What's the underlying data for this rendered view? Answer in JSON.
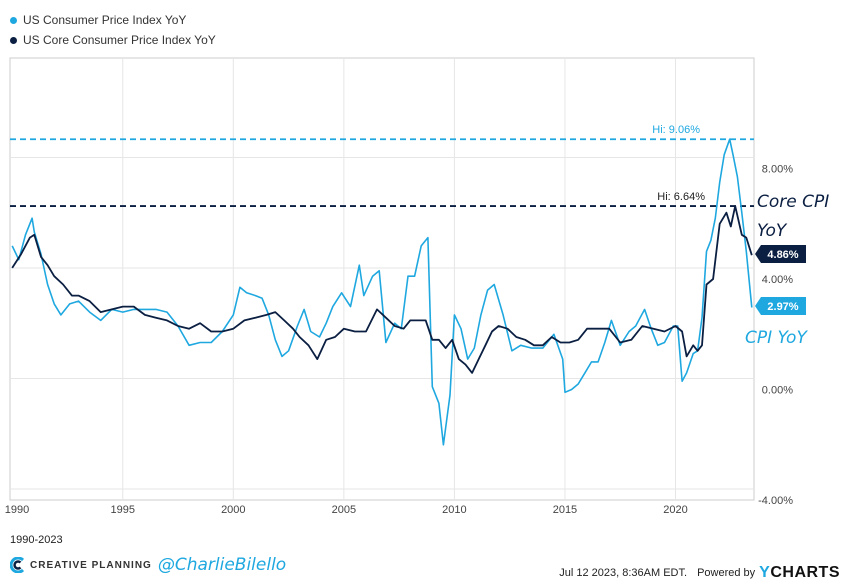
{
  "legend": [
    {
      "name": "US Consumer Price Index YoY",
      "color": "#1fa8e0"
    },
    {
      "name": "US Core Consumer Price Index YoY",
      "color": "#0b1f42"
    }
  ],
  "chart_data": {
    "type": "line",
    "x_ticks": [
      "1990",
      "1995",
      "2000",
      "2005",
      "2010",
      "2015",
      "2020"
    ],
    "y_ticks": [
      "8.00%",
      "4.00%",
      "0.00%",
      "-4.00%"
    ],
    "ylim": [
      -4.0,
      12.0
    ],
    "xlim": [
      1989.9,
      2023.55
    ],
    "grid": true,
    "series": [
      {
        "name": "US Consumer Price Index YoY",
        "color": "#1fa8e0",
        "x": [
          1990.0,
          1990.3,
          1990.6,
          1990.9,
          1991.0,
          1991.3,
          1991.6,
          1991.9,
          1992.2,
          1992.6,
          1993.0,
          1993.5,
          1994.0,
          1994.5,
          1995.0,
          1995.5,
          1996.0,
          1996.5,
          1997.0,
          1997.5,
          1998.0,
          1998.5,
          1999.0,
          1999.5,
          2000.0,
          2000.3,
          2000.6,
          2001.0,
          2001.3,
          2001.6,
          2001.9,
          2002.2,
          2002.5,
          2002.9,
          2003.2,
          2003.5,
          2003.9,
          2004.2,
          2004.5,
          2004.9,
          2005.3,
          2005.7,
          2005.9,
          2006.3,
          2006.6,
          2006.9,
          2007.3,
          2007.6,
          2007.9,
          2008.2,
          2008.5,
          2008.8,
          2009.0,
          2009.3,
          2009.5,
          2009.8,
          2010.0,
          2010.3,
          2010.6,
          2010.9,
          2011.2,
          2011.5,
          2011.8,
          2012.2,
          2012.6,
          2013.0,
          2013.5,
          2014.0,
          2014.5,
          2014.9,
          2015.0,
          2015.3,
          2015.6,
          2015.9,
          2016.2,
          2016.5,
          2016.8,
          2017.1,
          2017.5,
          2017.9,
          2018.2,
          2018.6,
          2018.9,
          2019.2,
          2019.5,
          2019.9,
          2020.1,
          2020.3,
          2020.5,
          2020.8,
          2021.0,
          2021.2,
          2021.4,
          2021.6,
          2021.8,
          2022.0,
          2022.2,
          2022.45,
          2022.6,
          2022.8,
          2023.0,
          2023.2,
          2023.45
        ],
        "y": [
          5.2,
          4.7,
          5.6,
          6.2,
          5.7,
          4.9,
          3.8,
          3.1,
          2.7,
          3.1,
          3.2,
          2.8,
          2.5,
          2.9,
          2.8,
          2.9,
          2.9,
          2.9,
          2.8,
          2.3,
          1.6,
          1.7,
          1.7,
          2.1,
          2.7,
          3.7,
          3.5,
          3.4,
          3.3,
          2.7,
          1.8,
          1.2,
          1.4,
          2.3,
          2.9,
          2.1,
          1.9,
          2.4,
          3.0,
          3.5,
          3.0,
          4.5,
          3.4,
          4.1,
          4.3,
          1.7,
          2.4,
          2.2,
          4.1,
          4.1,
          5.2,
          5.5,
          0.1,
          -0.5,
          -2.0,
          -0.2,
          2.7,
          2.2,
          1.1,
          1.5,
          2.7,
          3.6,
          3.8,
          2.7,
          1.4,
          1.6,
          1.5,
          1.5,
          2.0,
          1.1,
          -0.1,
          0.0,
          0.2,
          0.6,
          1.0,
          1.0,
          1.7,
          2.5,
          1.6,
          2.1,
          2.3,
          2.9,
          2.2,
          1.6,
          1.7,
          2.3,
          2.3,
          0.3,
          0.6,
          1.3,
          1.4,
          2.6,
          5.0,
          5.4,
          6.2,
          7.5,
          8.5,
          9.06,
          8.5,
          7.7,
          6.4,
          5.0,
          2.97
        ]
      },
      {
        "name": "US Core Consumer Price Index YoY",
        "color": "#0b1f42",
        "x": [
          1990.0,
          1990.4,
          1990.8,
          1991.0,
          1991.3,
          1991.6,
          1991.9,
          1992.3,
          1992.7,
          1993.0,
          1993.5,
          1994.0,
          1994.5,
          1995.0,
          1995.5,
          1996.0,
          1996.5,
          1997.0,
          1997.5,
          1998.0,
          1998.5,
          1999.0,
          1999.5,
          2000.0,
          2000.5,
          2001.0,
          2001.5,
          2001.9,
          2002.3,
          2002.7,
          2003.0,
          2003.4,
          2003.8,
          2004.2,
          2004.6,
          2005.0,
          2005.5,
          2006.0,
          2006.5,
          2006.9,
          2007.3,
          2007.7,
          2008.0,
          2008.4,
          2008.7,
          2009.0,
          2009.3,
          2009.6,
          2009.9,
          2010.2,
          2010.5,
          2010.8,
          2011.1,
          2011.4,
          2011.7,
          2012.0,
          2012.4,
          2012.8,
          2013.2,
          2013.6,
          2014.0,
          2014.4,
          2014.8,
          2015.2,
          2015.6,
          2016.0,
          2016.5,
          2017.0,
          2017.5,
          2018.0,
          2018.5,
          2019.0,
          2019.5,
          2020.0,
          2020.3,
          2020.5,
          2020.8,
          2021.0,
          2021.2,
          2021.4,
          2021.7,
          2022.0,
          2022.3,
          2022.5,
          2022.7,
          2023.0,
          2023.2,
          2023.45
        ],
        "y": [
          4.4,
          4.9,
          5.5,
          5.6,
          4.8,
          4.5,
          4.1,
          3.8,
          3.4,
          3.4,
          3.2,
          2.8,
          2.9,
          3.0,
          3.0,
          2.7,
          2.6,
          2.5,
          2.3,
          2.2,
          2.4,
          2.1,
          2.1,
          2.2,
          2.5,
          2.6,
          2.7,
          2.8,
          2.5,
          2.2,
          1.9,
          1.6,
          1.1,
          1.8,
          1.9,
          2.2,
          2.1,
          2.1,
          2.9,
          2.6,
          2.3,
          2.2,
          2.5,
          2.5,
          2.5,
          1.8,
          1.8,
          1.5,
          1.8,
          1.1,
          0.9,
          0.6,
          1.1,
          1.6,
          2.1,
          2.3,
          2.2,
          1.9,
          1.8,
          1.6,
          1.6,
          1.9,
          1.7,
          1.7,
          1.8,
          2.2,
          2.2,
          2.2,
          1.7,
          1.8,
          2.3,
          2.2,
          2.1,
          2.3,
          2.1,
          1.2,
          1.6,
          1.4,
          1.6,
          3.8,
          4.0,
          6.0,
          6.4,
          5.9,
          6.64,
          5.6,
          5.5,
          4.86
        ]
      }
    ],
    "reference_lines": [
      {
        "label": "Hi: 9.06%",
        "value": 9.06,
        "color": "#1fa8e0"
      },
      {
        "label": "Hi: 6.64%",
        "value": 6.64,
        "color": "#0b1f42"
      }
    ],
    "last_values": [
      {
        "label": "4.86%",
        "value": 4.86,
        "color": "#0b1f42"
      },
      {
        "label": "2.97%",
        "value": 2.97,
        "color": "#1fa8e0"
      }
    ],
    "annotations": [
      {
        "text": "Core CPI",
        "color": "#0b1f42"
      },
      {
        "text": "YoY",
        "color": "#0b1f42"
      },
      {
        "text": "CPI YoY",
        "color": "#1fa8e0"
      }
    ]
  },
  "footer": {
    "range": "1990-2023",
    "brand": "CREATIVE PLANNING",
    "handle": "@CharlieBilello",
    "timestamp": "Jul 12 2023, 8:36AM EDT.",
    "powered_by": "Powered by",
    "ycharts_y": "Y",
    "ycharts_rest": "CHARTS"
  }
}
